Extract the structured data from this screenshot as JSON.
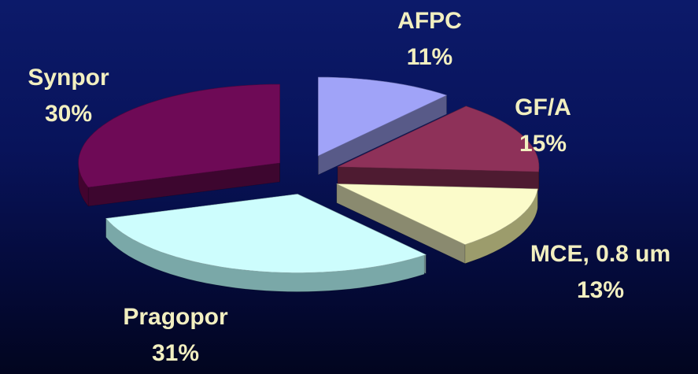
{
  "chart_data": {
    "type": "pie",
    "style": "3d-exploded",
    "slices": [
      {
        "label": "AFPC",
        "pct_label": "11%",
        "value": 11,
        "color": "#a0a3f8",
        "side_color": "#5b5e98"
      },
      {
        "label": "GF/A",
        "pct_label": "15%",
        "value": 15,
        "color": "#8e3159",
        "side_color": "#5c1c38"
      },
      {
        "label": "MCE, 0.8 um",
        "pct_label": "13%",
        "value": 13,
        "color": "#fbfbca",
        "side_color": "#9c9c6c"
      },
      {
        "label": "Pragopor",
        "pct_label": "31%",
        "value": 31,
        "color": "#cdfdfd",
        "side_color": "#7aa8a8"
      },
      {
        "label": "Synpor",
        "pct_label": "30%",
        "value": 30,
        "color": "#6e0a56",
        "side_color": "#42042f"
      }
    ]
  }
}
